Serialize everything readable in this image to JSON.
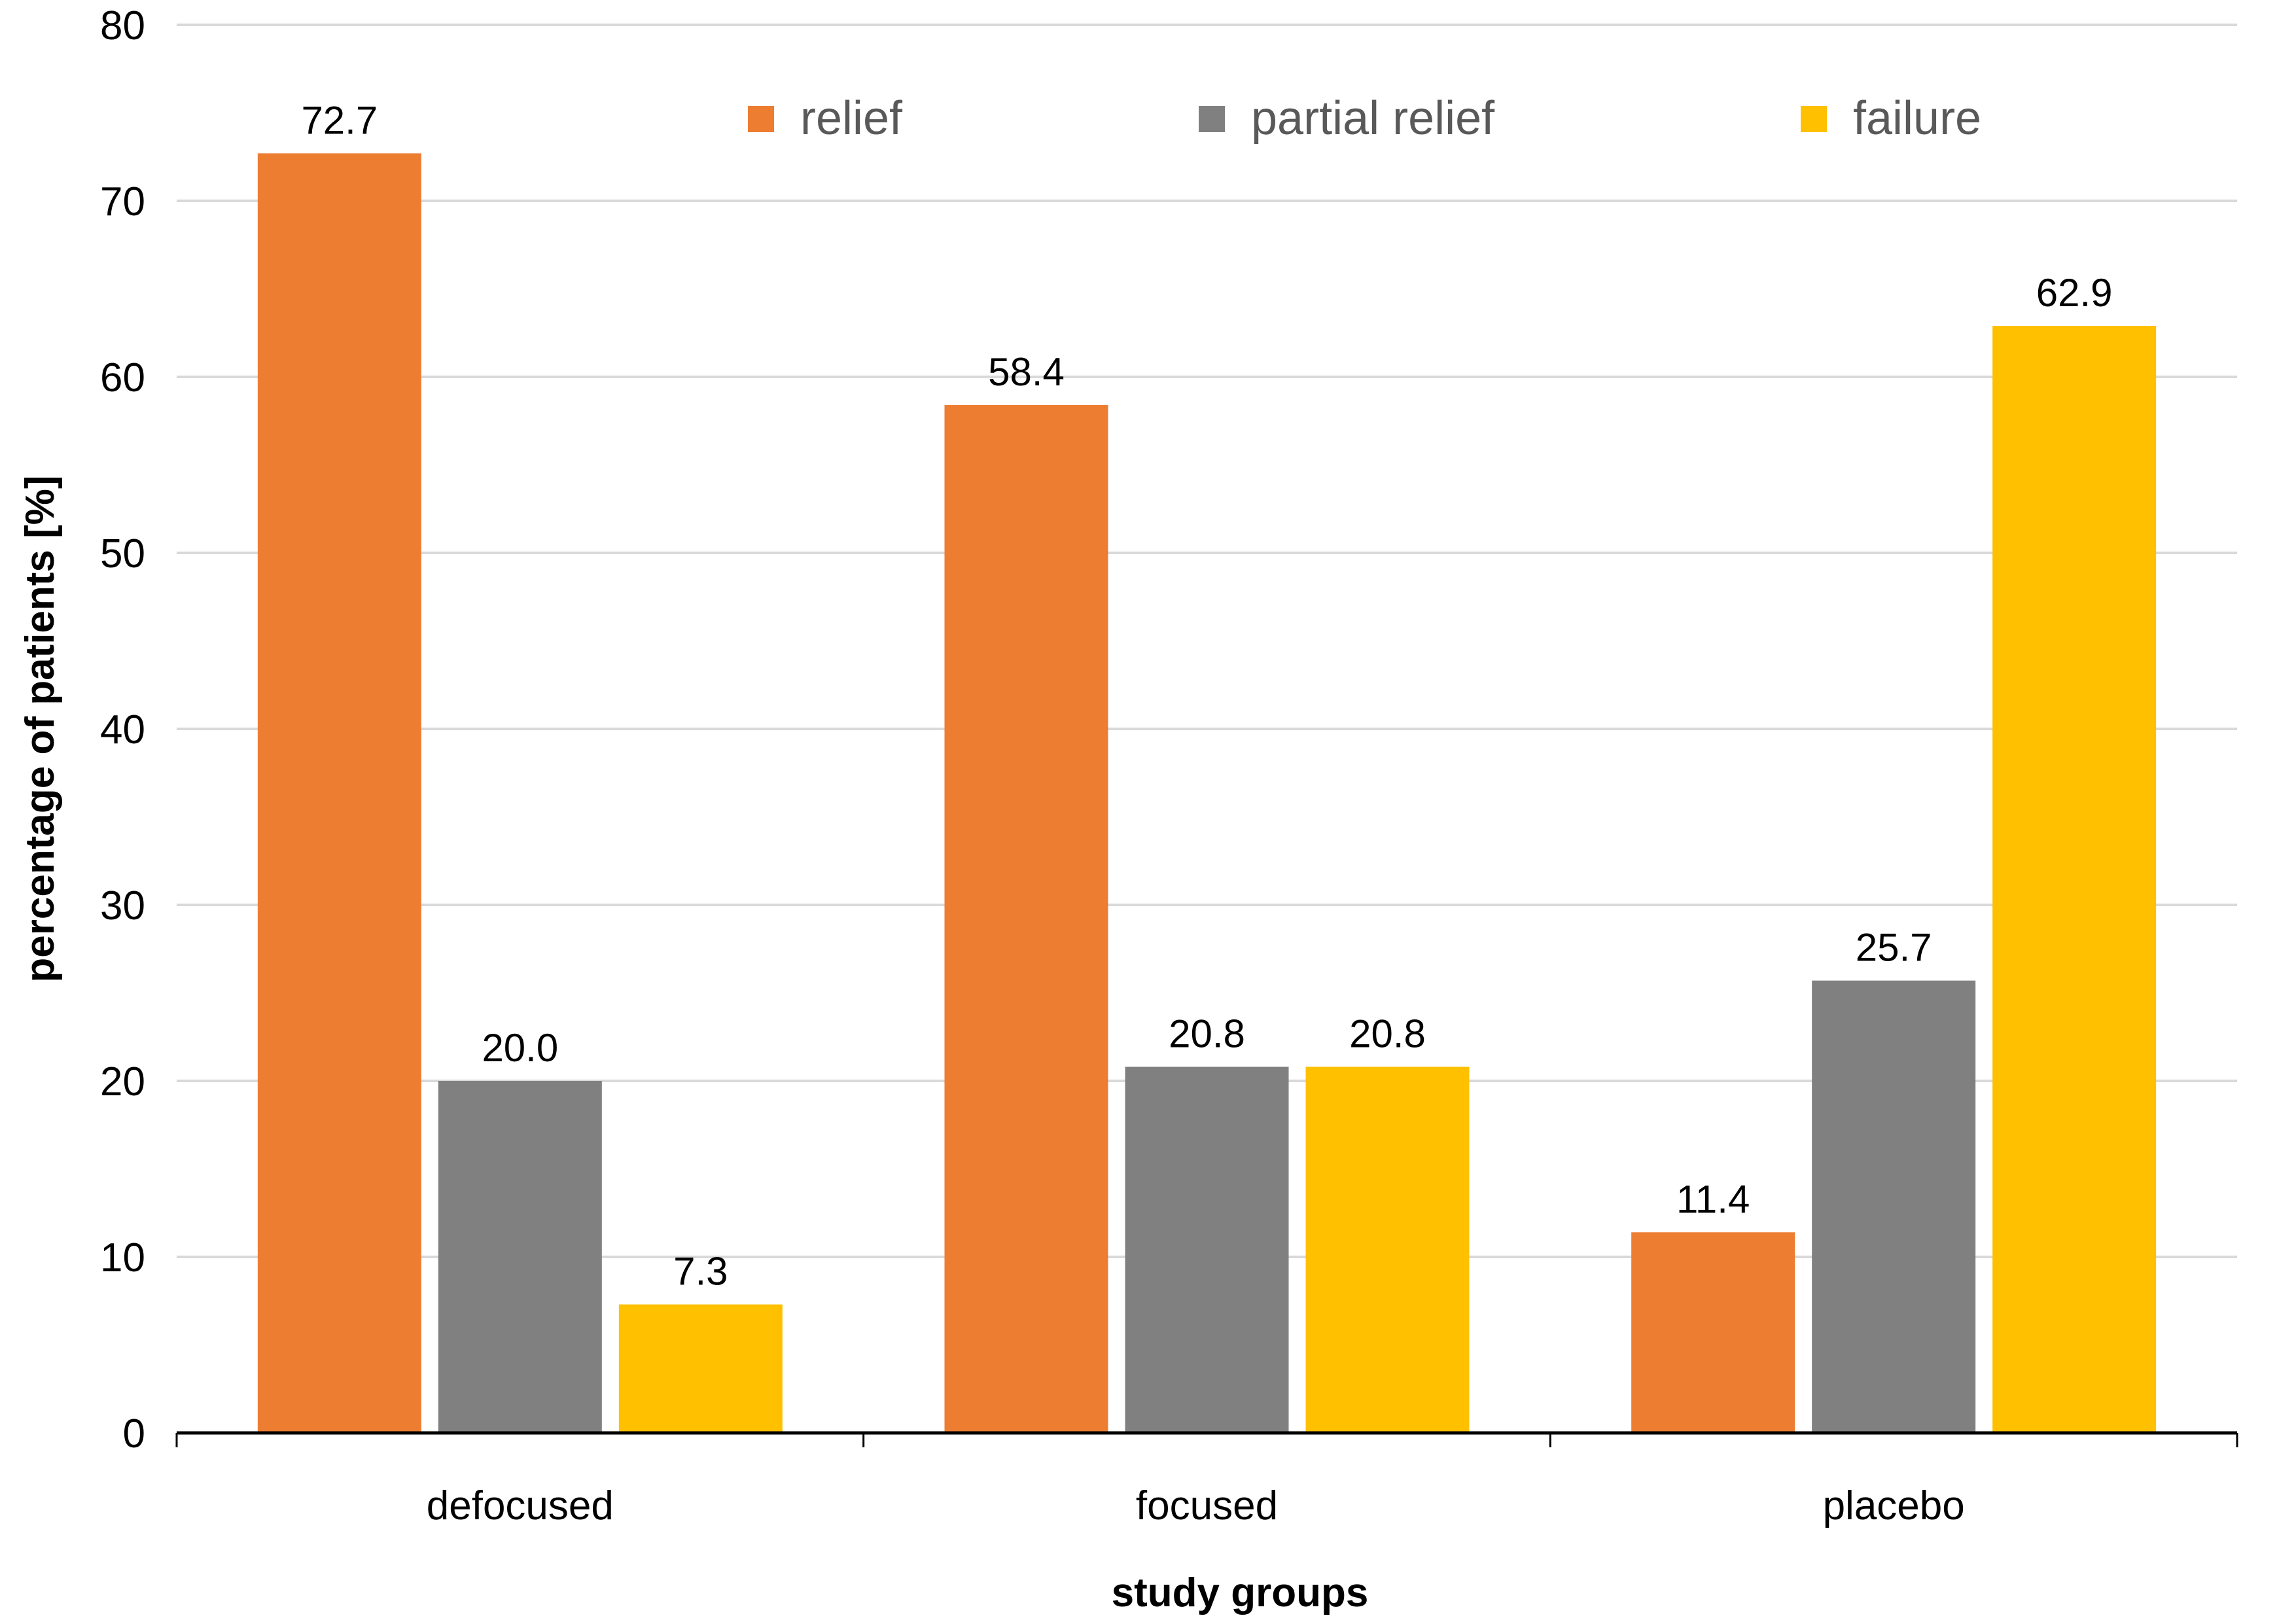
{
  "chart_data": {
    "type": "bar",
    "title": "",
    "xlabel": "study groups",
    "ylabel": "percentage of patients [%]",
    "ylim": [
      0,
      80
    ],
    "yticks": [
      0,
      10,
      20,
      30,
      40,
      50,
      60,
      70,
      80
    ],
    "grid": true,
    "legend_position": "top-right",
    "categories": [
      "defocused",
      "focused",
      "placebo"
    ],
    "series": [
      {
        "name": "relief",
        "color": "#ED7D31",
        "values": [
          72.7,
          58.4,
          11.4
        ],
        "labels": [
          "72.7",
          "58.4",
          "11.4"
        ]
      },
      {
        "name": "partial relief",
        "color": "#808080",
        "values": [
          20.0,
          20.8,
          25.7
        ],
        "labels": [
          "20.0",
          "20.8",
          "25.7"
        ]
      },
      {
        "name": "failure",
        "color": "#FFC000",
        "values": [
          7.3,
          20.8,
          62.9
        ],
        "labels": [
          "7.3",
          "20.8",
          "62.9"
        ]
      }
    ]
  }
}
